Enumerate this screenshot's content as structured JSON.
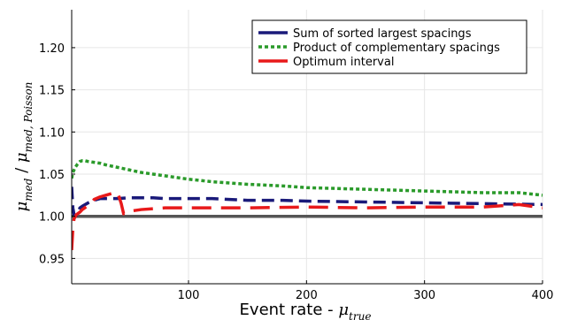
{
  "chart_data": {
    "type": "line",
    "title": "",
    "xlabel": "Event rate - μ_true",
    "xlabel_text": "Event rate - ",
    "xlabel_symbol": "μ",
    "xlabel_subscript": "true",
    "ylabel": "μ_med / μ_med, Poisson",
    "ylabel_symbol_1": "μ",
    "ylabel_subscript_1": "med",
    "ylabel_separator": " / ",
    "ylabel_symbol_2": "μ",
    "ylabel_subscript_2": "med, Poisson",
    "xlim": [
      1,
      400
    ],
    "ylim": [
      0.92,
      1.245
    ],
    "x_ticks": [
      100,
      200,
      300,
      400
    ],
    "y_ticks": [
      0.95,
      1.0,
      1.05,
      1.1,
      1.15,
      1.2
    ],
    "y_tick_labels": [
      "0.95",
      "1.00",
      "1.05",
      "1.10",
      "1.15",
      "1.20"
    ],
    "grid": true,
    "legend_position": "top-right",
    "reference_line": {
      "y": 1.0,
      "color": "#555555"
    },
    "series": [
      {
        "name": "Sum of sorted largest spacings",
        "color": "#1a1a7a",
        "style": "dashed",
        "x": [
          1,
          2,
          3,
          5,
          8,
          10,
          15,
          20,
          25,
          30,
          35,
          40,
          50,
          60,
          70,
          80,
          100,
          120,
          150,
          180,
          200,
          250,
          300,
          350,
          400
        ],
        "y": [
          1.035,
          1.01,
          1.002,
          1.001,
          1.01,
          1.012,
          1.016,
          1.019,
          1.021,
          1.021,
          1.021,
          1.021,
          1.022,
          1.022,
          1.022,
          1.021,
          1.021,
          1.021,
          1.019,
          1.019,
          1.018,
          1.017,
          1.016,
          1.015,
          1.014
        ]
      },
      {
        "name": "Product of complementary spacings",
        "color": "#2a9a2a",
        "style": "dotted",
        "x": [
          1,
          2,
          4,
          6,
          8,
          10,
          12,
          15,
          20,
          25,
          30,
          40,
          50,
          60,
          80,
          100,
          120,
          150,
          180,
          200,
          250,
          300,
          350,
          380,
          400
        ],
        "y": [
          1.045,
          1.052,
          1.058,
          1.062,
          1.065,
          1.066,
          1.066,
          1.065,
          1.064,
          1.063,
          1.061,
          1.058,
          1.055,
          1.052,
          1.048,
          1.044,
          1.041,
          1.038,
          1.036,
          1.034,
          1.032,
          1.03,
          1.028,
          1.028,
          1.025
        ]
      },
      {
        "name": "Optimum interval",
        "color": "#e8191a",
        "style": "long-dashed",
        "x": [
          1,
          2,
          3,
          5,
          8,
          10,
          12,
          15,
          18,
          20,
          25,
          30,
          35,
          40,
          43,
          45,
          48,
          50,
          60,
          70,
          80,
          100,
          150,
          200,
          250,
          300,
          350,
          380,
          400
        ],
        "y": [
          0.96,
          0.985,
          0.997,
          1.002,
          1.005,
          1.008,
          1.01,
          1.013,
          1.016,
          1.02,
          1.023,
          1.025,
          1.027,
          1.028,
          1.015,
          1.003,
          1.005,
          1.006,
          1.008,
          1.009,
          1.01,
          1.01,
          1.01,
          1.011,
          1.01,
          1.011,
          1.011,
          1.014,
          1.01
        ]
      }
    ]
  }
}
